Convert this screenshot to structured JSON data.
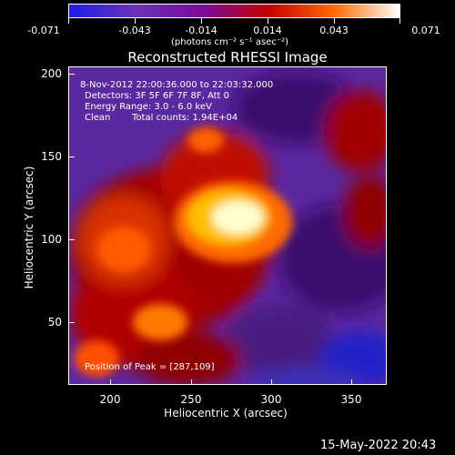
{
  "colorbar": {
    "tick_labels": [
      "-0.071",
      "-0.043",
      "-0.014",
      "0.014",
      "0.043",
      "0.071"
    ],
    "unit_label": "(photons cm⁻² s⁻¹ asec⁻²)",
    "colors": [
      "#1e1ee8",
      "#6a32b8",
      "#7a0aa0",
      "#c00000",
      "#ff6a00",
      "#ffffff"
    ]
  },
  "title": "Reconstructed RHESSI Image",
  "info": {
    "time_range": "8-Nov-2012 22:00:36.000 to 22:03:32.000",
    "detectors": "Detectors: 3F 5F 6F 7F 8F, Att 0",
    "energy": "Energy Range: 3.0 - 6.0 keV",
    "method": "Clean",
    "counts": "Total counts: 1.94E+04",
    "peak": "Position of Peak = [287,109]"
  },
  "axes": {
    "xlabel": "Heliocentric X (arcsec)",
    "ylabel": "Heliocentric Y (arcsec)",
    "xticks": [
      "200",
      "250",
      "300",
      "350"
    ],
    "yticks": [
      "50",
      "100",
      "150",
      "200"
    ]
  },
  "footer": {
    "date": "15-May-2022 20:43"
  }
}
